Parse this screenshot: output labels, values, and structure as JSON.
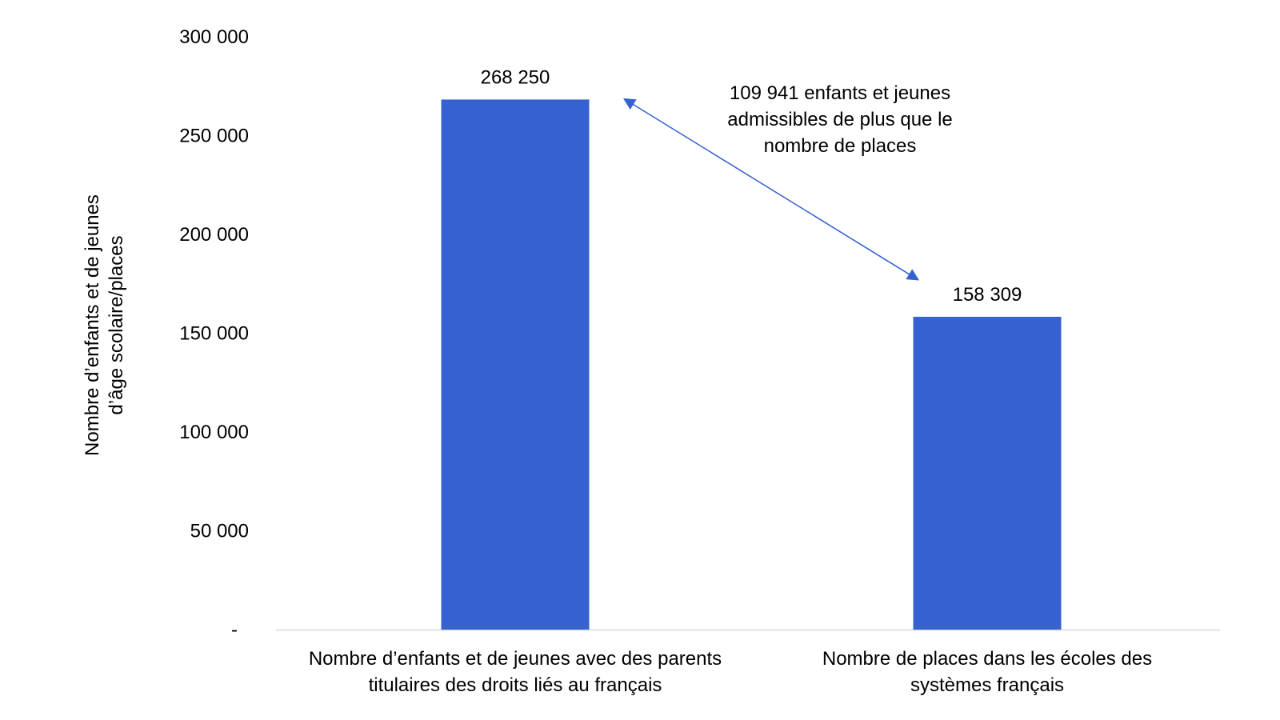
{
  "chart_data": {
    "type": "bar",
    "title": "",
    "ylabel": [
      "Nombre d’enfants et de jeunes",
      "d’âge scolaire/places"
    ],
    "xlabel": "",
    "ylim": [
      0,
      300000
    ],
    "yticks": [
      0,
      50000,
      100000,
      150000,
      200000,
      250000,
      300000
    ],
    "ytick_labels": [
      "-",
      "50 000",
      "100 000",
      "150 000",
      "200 000",
      "250 000",
      "300 000"
    ],
    "categories": [
      [
        "Nombre d’enfants et de jeunes avec des parents",
        "titulaires des droits liés au français"
      ],
      [
        "Nombre de places dans les écoles des",
        "systèmes français"
      ]
    ],
    "values": [
      268250,
      158309
    ],
    "value_labels": [
      "268 250",
      "158 309"
    ],
    "bar_color": "#3661D0",
    "annotation": {
      "lines": [
        "109 941 enfants et jeunes",
        "admissibles de plus que le",
        "nombre de places"
      ],
      "arrow_color": "#3661D0"
    },
    "grid": false,
    "legend": "none"
  }
}
